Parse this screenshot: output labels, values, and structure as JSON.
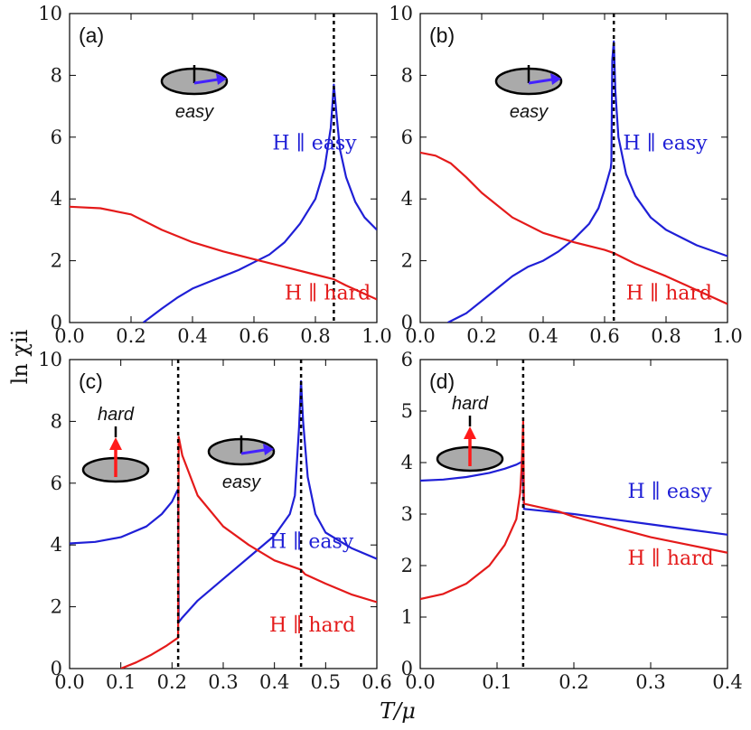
{
  "axis_titles": {
    "x": "T/μ",
    "y": "ln χii"
  },
  "colors": {
    "easy": "#1f1fd6",
    "hard": "#e41a1a",
    "arrow_easy": "#4422ff",
    "arrow_hard": "#ff1a1a",
    "disk": "#aaaaaa"
  },
  "chart_data": [
    {
      "type": "line",
      "panel_label": "(a)",
      "xlim": [
        0,
        1.0
      ],
      "ylim": [
        0,
        10
      ],
      "xticks": [
        "0.0",
        "0.2",
        "0.4",
        "0.6",
        "0.8",
        "1.0"
      ],
      "xtick_values": [
        0,
        0.2,
        0.4,
        0.6,
        0.8,
        1.0
      ],
      "yticks": [
        "0",
        "2",
        "4",
        "6",
        "8",
        "10"
      ],
      "ytick_values": [
        0,
        2,
        4,
        6,
        8,
        10
      ],
      "vlines": [
        0.86
      ],
      "icon": {
        "type": "easy",
        "label": "easy"
      },
      "annotations": [
        {
          "text": "H ∥ easy",
          "series": "easy",
          "x": 0.66,
          "y": 5.6
        },
        {
          "text": "H ∥ hard",
          "series": "hard",
          "x": 0.7,
          "y": 0.75
        }
      ],
      "series": [
        {
          "key": "easy",
          "values": [
            [
              0.24,
              0
            ],
            [
              0.3,
              0.45
            ],
            [
              0.35,
              0.8
            ],
            [
              0.4,
              1.1
            ],
            [
              0.45,
              1.3
            ],
            [
              0.5,
              1.5
            ],
            [
              0.55,
              1.7
            ],
            [
              0.6,
              1.95
            ],
            [
              0.65,
              2.2
            ],
            [
              0.7,
              2.6
            ],
            [
              0.75,
              3.2
            ],
            [
              0.8,
              4.0
            ],
            [
              0.83,
              5.0
            ],
            [
              0.85,
              6.3
            ],
            [
              0.86,
              7.7
            ],
            [
              0.87,
              6.6
            ],
            [
              0.88,
              5.6
            ],
            [
              0.9,
              4.7
            ],
            [
              0.93,
              3.9
            ],
            [
              0.96,
              3.4
            ],
            [
              1.0,
              3.0
            ]
          ]
        },
        {
          "key": "hard",
          "values": [
            [
              0,
              3.75
            ],
            [
              0.1,
              3.7
            ],
            [
              0.2,
              3.5
            ],
            [
              0.3,
              3.0
            ],
            [
              0.4,
              2.6
            ],
            [
              0.5,
              2.3
            ],
            [
              0.6,
              2.05
            ],
            [
              0.7,
              1.8
            ],
            [
              0.8,
              1.55
            ],
            [
              0.86,
              1.4
            ],
            [
              0.9,
              1.2
            ],
            [
              1.0,
              0.75
            ]
          ]
        }
      ]
    },
    {
      "type": "line",
      "panel_label": "(b)",
      "xlim": [
        0,
        1.0
      ],
      "ylim": [
        0,
        10
      ],
      "xticks": [
        "0.0",
        "0.2",
        "0.4",
        "0.6",
        "0.8",
        "1.0"
      ],
      "xtick_values": [
        0,
        0.2,
        0.4,
        0.6,
        0.8,
        1.0
      ],
      "yticks": [
        "0",
        "2",
        "4",
        "6",
        "8",
        "10"
      ],
      "ytick_values": [
        0,
        2,
        4,
        6,
        8,
        10
      ],
      "vlines": [
        0.63
      ],
      "icon": {
        "type": "easy",
        "label": "easy"
      },
      "annotations": [
        {
          "text": "H ∥ easy",
          "series": "easy",
          "x": 0.66,
          "y": 5.6
        },
        {
          "text": "H ∥ hard",
          "series": "hard",
          "x": 0.67,
          "y": 0.75
        }
      ],
      "series": [
        {
          "key": "easy",
          "values": [
            [
              0.09,
              0
            ],
            [
              0.15,
              0.3
            ],
            [
              0.2,
              0.7
            ],
            [
              0.25,
              1.1
            ],
            [
              0.3,
              1.5
            ],
            [
              0.35,
              1.8
            ],
            [
              0.4,
              2.0
            ],
            [
              0.45,
              2.3
            ],
            [
              0.5,
              2.7
            ],
            [
              0.55,
              3.2
            ],
            [
              0.58,
              3.7
            ],
            [
              0.6,
              4.3
            ],
            [
              0.62,
              5.0
            ],
            [
              0.622,
              5.2
            ],
            [
              0.625,
              8.5
            ],
            [
              0.63,
              9.1
            ],
            [
              0.635,
              7.5
            ],
            [
              0.645,
              6.0
            ],
            [
              0.67,
              4.8
            ],
            [
              0.7,
              4.1
            ],
            [
              0.75,
              3.4
            ],
            [
              0.8,
              3.0
            ],
            [
              0.9,
              2.5
            ],
            [
              1.0,
              2.15
            ]
          ]
        },
        {
          "key": "hard",
          "values": [
            [
              0,
              5.5
            ],
            [
              0.05,
              5.4
            ],
            [
              0.1,
              5.15
            ],
            [
              0.15,
              4.7
            ],
            [
              0.2,
              4.2
            ],
            [
              0.3,
              3.4
            ],
            [
              0.4,
              2.9
            ],
            [
              0.5,
              2.6
            ],
            [
              0.6,
              2.35
            ],
            [
              0.63,
              2.25
            ],
            [
              0.7,
              1.9
            ],
            [
              0.8,
              1.5
            ],
            [
              0.9,
              1.05
            ],
            [
              1.0,
              0.6
            ]
          ]
        }
      ]
    },
    {
      "type": "line",
      "panel_label": "(c)",
      "xlim": [
        0,
        0.6
      ],
      "ylim": [
        0,
        10
      ],
      "xticks": [
        "0.0",
        "0.1",
        "0.2",
        "0.3",
        "0.4",
        "0.5",
        "0.6"
      ],
      "xtick_values": [
        0,
        0.1,
        0.2,
        0.3,
        0.4,
        0.5,
        0.6
      ],
      "yticks": [
        "0",
        "2",
        "4",
        "6",
        "8",
        "10"
      ],
      "ytick_values": [
        0,
        2,
        4,
        6,
        8,
        10
      ],
      "vlines": [
        0.212,
        0.452
      ],
      "icon": {
        "type": "both",
        "label": "easy",
        "label2": "hard"
      },
      "annotations": [
        {
          "text": "H ∥ easy",
          "series": "easy",
          "x": 0.39,
          "y": 3.9
        },
        {
          "text": "H ∥ hard",
          "series": "hard",
          "x": 0.39,
          "y": 1.2
        }
      ],
      "series": [
        {
          "key": "easy",
          "values": [
            [
              0,
              4.05
            ],
            [
              0.05,
              4.1
            ],
            [
              0.1,
              4.25
            ],
            [
              0.15,
              4.6
            ],
            [
              0.18,
              5.0
            ],
            [
              0.2,
              5.4
            ],
            [
              0.21,
              5.75
            ],
            [
              0.212,
              5.8
            ],
            [
              0.213,
              1.5
            ],
            [
              0.22,
              1.65
            ],
            [
              0.25,
              2.2
            ],
            [
              0.3,
              2.9
            ],
            [
              0.35,
              3.6
            ],
            [
              0.4,
              4.3
            ],
            [
              0.43,
              5.0
            ],
            [
              0.44,
              5.6
            ],
            [
              0.448,
              7.8
            ],
            [
              0.452,
              9.3
            ],
            [
              0.456,
              8.0
            ],
            [
              0.465,
              6.2
            ],
            [
              0.48,
              5.0
            ],
            [
              0.5,
              4.4
            ],
            [
              0.55,
              3.9
            ],
            [
              0.6,
              3.55
            ]
          ]
        },
        {
          "key": "hard",
          "values": [
            [
              0.1,
              0
            ],
            [
              0.13,
              0.2
            ],
            [
              0.16,
              0.45
            ],
            [
              0.19,
              0.75
            ],
            [
              0.212,
              1.0
            ],
            [
              0.213,
              7.5
            ],
            [
              0.22,
              6.9
            ],
            [
              0.25,
              5.6
            ],
            [
              0.3,
              4.6
            ],
            [
              0.35,
              4.0
            ],
            [
              0.4,
              3.5
            ],
            [
              0.452,
              3.2
            ],
            [
              0.46,
              3.05
            ],
            [
              0.5,
              2.75
            ],
            [
              0.55,
              2.4
            ],
            [
              0.6,
              2.15
            ]
          ]
        }
      ]
    },
    {
      "type": "line",
      "panel_label": "(d)",
      "xlim": [
        0,
        0.4
      ],
      "ylim": [
        0,
        6
      ],
      "xticks": [
        "0.0",
        "0.1",
        "0.2",
        "0.3",
        "0.4"
      ],
      "xtick_values": [
        0,
        0.1,
        0.2,
        0.3,
        0.4
      ],
      "yticks": [
        "0",
        "1",
        "2",
        "3",
        "4",
        "5",
        "6"
      ],
      "ytick_values": [
        0,
        1,
        2,
        3,
        4,
        5,
        6
      ],
      "vlines": [
        0.134
      ],
      "icon": {
        "type": "hard",
        "label": "hard"
      },
      "annotations": [
        {
          "text": "H ∥ easy",
          "series": "easy",
          "x": 0.27,
          "y": 3.32
        },
        {
          "text": "H ∥ hard",
          "series": "hard",
          "x": 0.27,
          "y": 2.02
        }
      ],
      "series": [
        {
          "key": "easy",
          "values": [
            [
              0,
              3.65
            ],
            [
              0.03,
              3.67
            ],
            [
              0.06,
              3.72
            ],
            [
              0.09,
              3.8
            ],
            [
              0.11,
              3.88
            ],
            [
              0.125,
              3.96
            ],
            [
              0.133,
              4.02
            ],
            [
              0.135,
              3.1
            ],
            [
              0.2,
              3.0
            ],
            [
              0.25,
              2.9
            ],
            [
              0.3,
              2.8
            ],
            [
              0.35,
              2.7
            ],
            [
              0.4,
              2.6
            ]
          ]
        },
        {
          "key": "hard",
          "values": [
            [
              0,
              1.35
            ],
            [
              0.03,
              1.45
            ],
            [
              0.06,
              1.65
            ],
            [
              0.09,
              2.0
            ],
            [
              0.11,
              2.4
            ],
            [
              0.125,
              2.9
            ],
            [
              0.13,
              3.4
            ],
            [
              0.132,
              3.9
            ],
            [
              0.134,
              4.8
            ],
            [
              0.135,
              3.2
            ],
            [
              0.18,
              3.05
            ],
            [
              0.2,
              2.95
            ],
            [
              0.25,
              2.75
            ],
            [
              0.3,
              2.55
            ],
            [
              0.35,
              2.4
            ],
            [
              0.4,
              2.25
            ]
          ]
        }
      ]
    }
  ]
}
